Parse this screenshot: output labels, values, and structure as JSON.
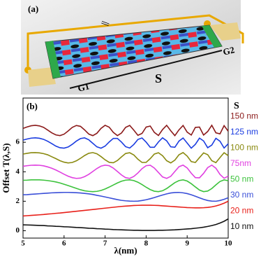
{
  "illustration": {
    "label": "(a)",
    "gate_left": "G1",
    "gate_right": "G2",
    "size_label": "S",
    "symbol": "||"
  },
  "chart_data": {
    "type": "line",
    "panel_label": "(b)",
    "legend_title": "S",
    "x_label": "λ(nm)",
    "y_label": "Offset T(λ,S)",
    "xlim": [
      5,
      10
    ],
    "xticks": [
      5,
      6,
      7,
      8,
      9,
      10
    ],
    "ylim": [
      -0.5,
      9.0
    ],
    "yticks": [
      0,
      2,
      4,
      6
    ],
    "x": [
      5.0,
      5.1,
      5.2,
      5.3,
      5.4,
      5.5,
      5.6,
      5.7,
      5.8,
      5.9,
      6.0,
      6.1,
      6.2,
      6.3,
      6.4,
      6.5,
      6.6,
      6.7,
      6.8,
      6.9,
      7.0,
      7.1,
      7.2,
      7.3,
      7.4,
      7.5,
      7.6,
      7.7,
      7.8,
      7.9,
      8.0,
      8.1,
      8.2,
      8.3,
      8.4,
      8.5,
      8.6,
      8.7,
      8.8,
      8.9,
      9.0,
      9.1,
      9.2,
      9.3,
      9.4,
      9.5,
      9.6,
      9.7,
      9.8,
      9.9,
      10.0
    ],
    "series": [
      {
        "name": "10 nm",
        "color": "#111111",
        "values": [
          0.4,
          0.39,
          0.38,
          0.37,
          0.36,
          0.35,
          0.33,
          0.32,
          0.3,
          0.29,
          0.27,
          0.26,
          0.24,
          0.22,
          0.21,
          0.19,
          0.17,
          0.16,
          0.14,
          0.13,
          0.11,
          0.1,
          0.08,
          0.07,
          0.06,
          0.05,
          0.04,
          0.03,
          0.03,
          0.02,
          0.02,
          0.02,
          0.02,
          0.03,
          0.03,
          0.04,
          0.05,
          0.06,
          0.08,
          0.1,
          0.12,
          0.14,
          0.17,
          0.2,
          0.24,
          0.29,
          0.35,
          0.42,
          0.52,
          0.64,
          0.8
        ]
      },
      {
        "name": "20 nm",
        "color": "#e8201a",
        "values": [
          1.0,
          1.02,
          1.04,
          1.06,
          1.08,
          1.1,
          1.13,
          1.15,
          1.18,
          1.2,
          1.23,
          1.26,
          1.29,
          1.32,
          1.35,
          1.38,
          1.41,
          1.44,
          1.47,
          1.5,
          1.53,
          1.56,
          1.59,
          1.62,
          1.65,
          1.67,
          1.69,
          1.71,
          1.72,
          1.73,
          1.73,
          1.73,
          1.72,
          1.71,
          1.69,
          1.67,
          1.65,
          1.63,
          1.61,
          1.59,
          1.57,
          1.56,
          1.55,
          1.55,
          1.56,
          1.58,
          1.62,
          1.68,
          1.76,
          1.87,
          2.0
        ]
      },
      {
        "name": "30 nm",
        "color": "#3a4fd8",
        "values": [
          2.44,
          2.45,
          2.47,
          2.49,
          2.51,
          2.53,
          2.55,
          2.57,
          2.58,
          2.59,
          2.6,
          2.6,
          2.59,
          2.58,
          2.56,
          2.53,
          2.5,
          2.46,
          2.4,
          2.35,
          2.29,
          2.23,
          2.17,
          2.11,
          2.06,
          2.03,
          2.01,
          2.0,
          2.01,
          2.05,
          2.1,
          2.17,
          2.25,
          2.34,
          2.42,
          2.5,
          2.56,
          2.59,
          2.6,
          2.57,
          2.52,
          2.44,
          2.34,
          2.23,
          2.13,
          2.05,
          2.01,
          2.0,
          2.05,
          2.13,
          2.24
        ]
      },
      {
        "name": "50 nm",
        "color": "#3cc23c",
        "values": [
          3.42,
          3.43,
          3.45,
          3.45,
          3.45,
          3.43,
          3.4,
          3.36,
          3.31,
          3.24,
          3.15,
          3.06,
          2.97,
          2.87,
          2.78,
          2.71,
          2.67,
          2.65,
          2.67,
          2.73,
          2.83,
          2.96,
          3.1,
          3.24,
          3.36,
          3.43,
          3.45,
          3.4,
          3.29,
          3.13,
          2.95,
          2.79,
          2.68,
          2.65,
          2.71,
          2.86,
          3.06,
          3.26,
          3.4,
          3.45,
          3.37,
          3.19,
          2.97,
          2.76,
          2.65,
          2.69,
          2.86,
          3.11,
          3.34,
          3.45,
          3.39
        ]
      },
      {
        "name": "75nm",
        "color": "#e040e0",
        "values": [
          4.37,
          4.41,
          4.44,
          4.45,
          4.44,
          4.4,
          4.33,
          4.24,
          4.12,
          3.98,
          3.83,
          3.7,
          3.6,
          3.55,
          3.57,
          3.67,
          3.82,
          4.02,
          4.22,
          4.38,
          4.45,
          4.41,
          4.25,
          4.02,
          3.78,
          3.6,
          3.55,
          3.68,
          3.92,
          4.21,
          4.41,
          4.44,
          4.25,
          3.95,
          3.65,
          3.55,
          3.69,
          4.02,
          4.34,
          4.45,
          4.26,
          3.9,
          3.6,
          3.59,
          3.89,
          4.28,
          4.45,
          4.24,
          3.82,
          3.56,
          3.7
        ]
      },
      {
        "name": "100 nm",
        "color": "#8a8a10",
        "values": [
          5.2,
          5.25,
          5.29,
          5.3,
          5.28,
          5.23,
          5.15,
          5.02,
          4.89,
          4.75,
          4.65,
          4.6,
          4.63,
          4.74,
          4.91,
          5.1,
          5.25,
          5.3,
          5.22,
          5.03,
          4.81,
          4.64,
          4.61,
          4.76,
          5.01,
          5.24,
          5.29,
          5.14,
          4.85,
          4.63,
          4.64,
          4.89,
          5.2,
          5.29,
          5.09,
          4.75,
          4.6,
          4.79,
          5.15,
          5.3,
          5.06,
          4.69,
          4.63,
          4.96,
          5.28,
          5.16,
          4.75,
          4.62,
          4.96,
          5.29,
          5.09
        ]
      },
      {
        "name": "125 nm",
        "color": "#1a3ce0",
        "values": [
          6.15,
          6.22,
          6.28,
          6.3,
          6.27,
          6.2,
          6.07,
          5.91,
          5.74,
          5.63,
          5.6,
          5.68,
          5.86,
          6.08,
          6.25,
          6.3,
          6.17,
          5.93,
          5.69,
          5.6,
          5.74,
          6.02,
          6.26,
          6.26,
          6.01,
          5.7,
          5.61,
          5.85,
          6.19,
          6.29,
          6.01,
          5.66,
          5.66,
          6.02,
          6.3,
          6.1,
          5.69,
          5.66,
          6.08,
          6.29,
          5.95,
          5.6,
          5.86,
          6.28,
          6.09,
          5.63,
          5.81,
          6.27,
          6.07,
          5.61,
          5.9
        ]
      },
      {
        "name": "150 nm",
        "color": "#8b1a1a",
        "values": [
          6.94,
          7.04,
          7.12,
          7.15,
          7.11,
          7.01,
          6.83,
          6.64,
          6.5,
          6.45,
          6.55,
          6.77,
          7.01,
          7.14,
          7.08,
          6.84,
          6.56,
          6.45,
          6.61,
          6.94,
          7.15,
          7.02,
          6.67,
          6.45,
          6.63,
          7.01,
          7.14,
          6.82,
          6.47,
          6.6,
          7.03,
          7.1,
          6.67,
          6.46,
          6.86,
          7.15,
          6.78,
          6.45,
          6.84,
          7.14,
          6.69,
          6.49,
          7.01,
          7.03,
          6.49,
          6.73,
          7.15,
          6.64,
          6.57,
          7.13,
          6.75
        ]
      }
    ]
  }
}
